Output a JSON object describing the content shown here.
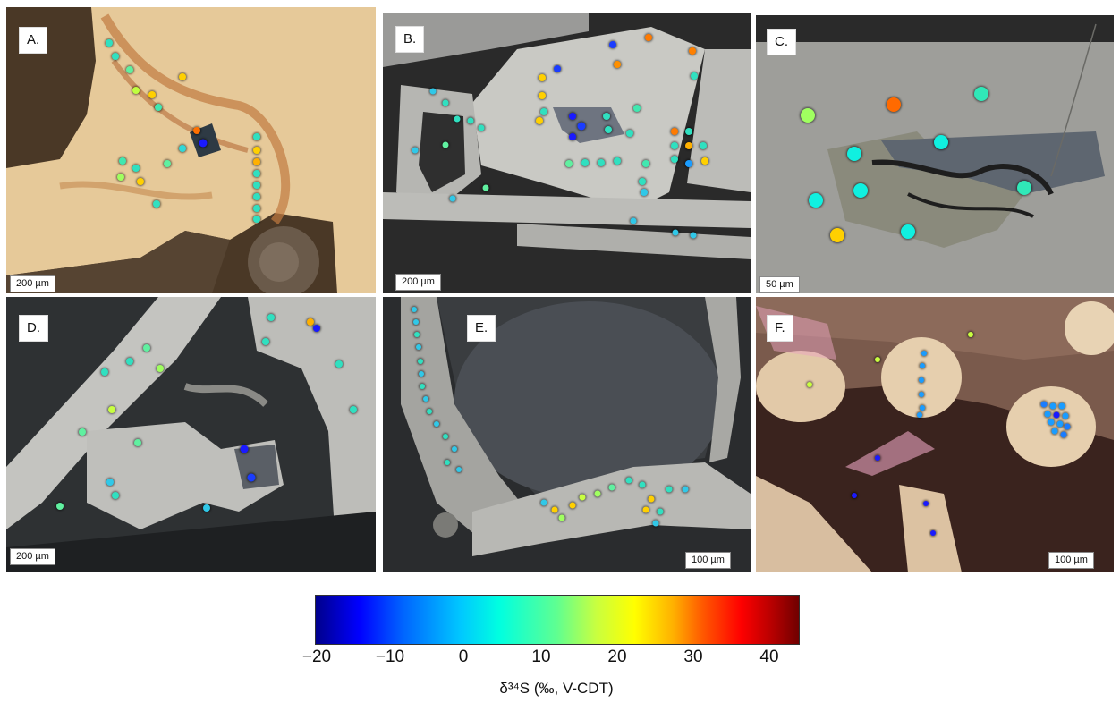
{
  "panels": [
    {
      "label": "A.",
      "scale": "200 µm",
      "theme": "tan"
    },
    {
      "label": "B.",
      "scale": "200 µm",
      "theme": "grey"
    },
    {
      "label": "C.",
      "scale": "50 µm",
      "theme": "grey"
    },
    {
      "label": "D.",
      "scale": "200 µm",
      "theme": "grey"
    },
    {
      "label": "E.",
      "scale": "100 µm",
      "theme": "grey"
    },
    {
      "label": "F.",
      "scale": "100 µm",
      "theme": "pink"
    }
  ],
  "colorbar": {
    "ticks": [
      "−20",
      "−10",
      "0",
      "10",
      "20",
      "30",
      "40"
    ],
    "label": "δ³⁴S (‰, V-CDT)",
    "colors": [
      "#00008c",
      "#0000ff",
      "#00c8ff",
      "#60ff90",
      "#ffff00",
      "#ff5a00",
      "#700000"
    ]
  },
  "palette": {
    "tan_mineral": "#e8cf9e",
    "tan_rim": "#c98a52",
    "grey_mineral": "#c9c9c4",
    "grey_matrix": "#3a3a3a",
    "pink_matrix": "#4a2e28",
    "pink_grain": "#e2c9a8"
  }
}
